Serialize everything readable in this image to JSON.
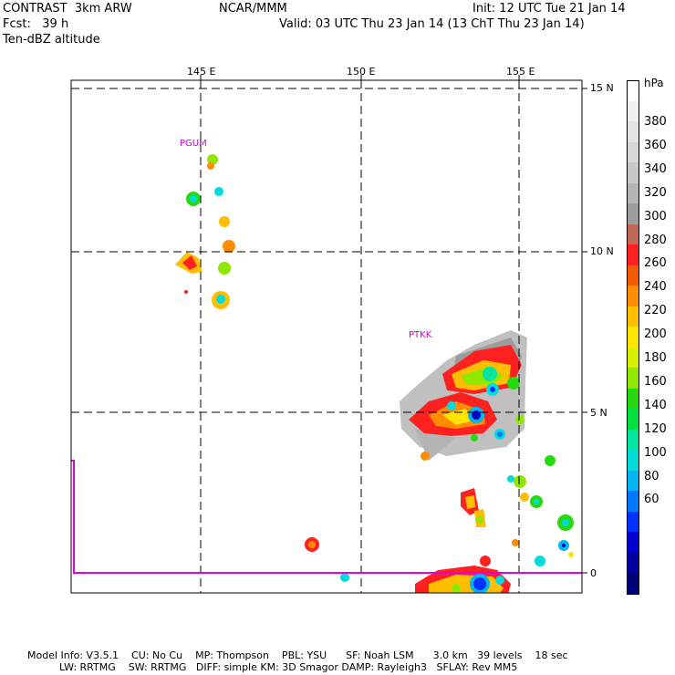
{
  "header": {
    "model": "CONTRAST  3km ARW",
    "center": "NCAR/MMM",
    "init": "Init: 12 UTC Tue 21 Jan 14",
    "fcst": "Fcst:   39 h",
    "valid": "Valid: 03 UTC Thu 23 Jan 14 (13 ChT Thu 23 Jan 14)",
    "field": "Ten-dBZ altitude"
  },
  "axes": {
    "lon_labels": [
      "145 E",
      "150 E",
      "155 E"
    ],
    "lat_labels": [
      "15 N",
      "10 N",
      "5 N",
      "0"
    ]
  },
  "stations": [
    "PGUM",
    "PTKK"
  ],
  "colorbar": {
    "unit": "hPa",
    "labels": [
      "380",
      "360",
      "340",
      "320",
      "300",
      "280",
      "260",
      "240",
      "220",
      "200",
      "180",
      "160",
      "140",
      "120",
      "100",
      "80",
      "60"
    ],
    "colors": [
      "#ffffff",
      "#f0f0f0",
      "#e4e4e4",
      "#d7d7d7",
      "#c8c8c8",
      "#b4b4b4",
      "#9c9c9c",
      "#c06858",
      "#ff2020",
      "#f05a00",
      "#ff8c00",
      "#ffbe00",
      "#ffe400",
      "#d8f000",
      "#90e800",
      "#28d810",
      "#00e040",
      "#00e6a0",
      "#00dcdc",
      "#00b4f0",
      "#0078ff",
      "#0032ff",
      "#0000d0",
      "#0000a0",
      "#000078"
    ]
  },
  "footer": {
    "line1": "Model Info: V3.5.1    CU: No Cu    MP: Thompson    PBL: YSU      SF: Noah LSM      3.0 km   39 levels    18 sec",
    "line2": "          LW: RRTMG    SW: RRTMG   DIFF: simple KM: 3D Smagor DAMP: Rayleigh3   SFLAY: Rev MM5"
  }
}
